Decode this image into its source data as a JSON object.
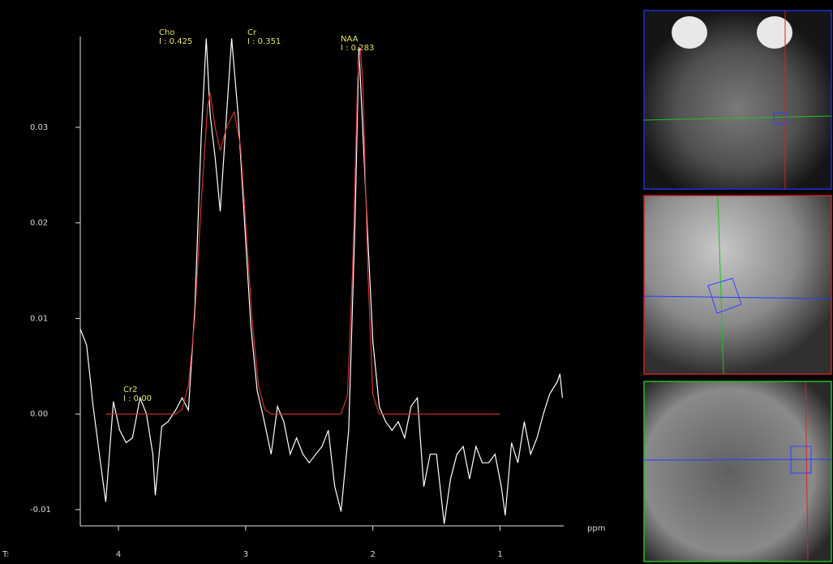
{
  "chart_data": {
    "type": "line",
    "x_label": "ppm",
    "corner_label": "T:",
    "xlim": [
      4.3,
      0.5
    ],
    "xticks": [
      4,
      3,
      2,
      1
    ],
    "ylim": [
      -0.0117,
      0.0395
    ],
    "yticks": [
      -0.01,
      {
        "value": 0,
        "label": "0.00"
      },
      0.01,
      0.02,
      0.03
    ],
    "annotations": [
      {
        "name": "Cho",
        "integral": "I : 0.425"
      },
      {
        "name": "Cr",
        "integral": "I : 0.351"
      },
      {
        "name": "NAA",
        "integral": "I : 0.283"
      },
      {
        "name": "Cr2",
        "integral": "I : 0.00"
      }
    ],
    "series": [
      {
        "color": "#ffffff",
        "x": [
          4.3,
          4.25,
          4.2,
          4.15,
          4.1,
          4.04,
          3.99,
          3.94,
          3.89,
          3.83,
          3.78,
          3.73,
          3.71,
          3.66,
          3.61,
          3.55,
          3.5,
          3.45,
          3.4,
          3.35,
          3.31,
          3.28,
          3.24,
          3.2,
          3.15,
          3.11,
          3.06,
          3.01,
          2.96,
          2.91,
          2.86,
          2.8,
          2.75,
          2.7,
          2.65,
          2.6,
          2.55,
          2.5,
          2.45,
          2.4,
          2.35,
          2.3,
          2.25,
          2.19,
          2.14,
          2.11,
          2.05,
          2.0,
          1.95,
          1.9,
          1.85,
          1.8,
          1.75,
          1.7,
          1.65,
          1.6,
          1.55,
          1.5,
          1.44,
          1.39,
          1.34,
          1.29,
          1.24,
          1.19,
          1.14,
          1.09,
          1.04,
          0.99,
          0.96,
          0.91,
          0.86,
          0.81,
          0.76,
          0.71,
          0.66,
          0.61,
          0.55,
          0.53,
          0.51
        ],
        "values": [
          0.0089,
          0.0072,
          0.0009,
          -0.0042,
          -0.0092,
          0.0013,
          -0.0017,
          -0.003,
          -0.0025,
          0.0017,
          0.0,
          -0.0042,
          -0.0085,
          -0.0013,
          -0.0008,
          0.0004,
          0.0017,
          0.0004,
          0.011,
          0.0289,
          0.0393,
          0.0314,
          0.0268,
          0.0212,
          0.0314,
          0.0393,
          0.0314,
          0.0204,
          0.0093,
          0.0025,
          -0.0004,
          -0.0042,
          0.0008,
          -0.0008,
          -0.0042,
          -0.0025,
          -0.0042,
          -0.0051,
          -0.0042,
          -0.0034,
          -0.0017,
          -0.0076,
          -0.0102,
          -0.0017,
          0.0204,
          0.0384,
          0.0212,
          0.0076,
          0.0008,
          -0.0008,
          -0.0017,
          -0.0008,
          -0.0025,
          0.0008,
          0.0017,
          -0.0076,
          -0.0042,
          -0.0042,
          -0.0115,
          -0.0068,
          -0.0042,
          -0.0034,
          -0.0068,
          -0.0034,
          -0.0051,
          -0.0051,
          -0.0042,
          -0.0076,
          -0.0106,
          -0.003,
          -0.0051,
          -0.0008,
          -0.0042,
          -0.0025,
          0.0,
          0.0021,
          0.0034,
          0.0042,
          0.0017
        ]
      },
      {
        "color": "#d03030",
        "x": [
          4.1,
          3.55,
          3.5,
          3.45,
          3.4,
          3.35,
          3.3,
          3.28,
          3.24,
          3.2,
          3.15,
          3.09,
          3.04,
          3.0,
          2.95,
          2.9,
          2.85,
          2.8,
          2.25,
          2.2,
          2.16,
          2.12,
          2.1,
          2.08,
          2.04,
          2.0,
          1.95,
          1.0
        ],
        "values": [
          0,
          0,
          0.0005,
          0.003,
          0.01,
          0.022,
          0.032,
          0.0336,
          0.03,
          0.0276,
          0.03,
          0.0316,
          0.028,
          0.02,
          0.01,
          0.003,
          0.0005,
          0,
          0,
          0.002,
          0.015,
          0.035,
          0.0383,
          0.035,
          0.015,
          0.002,
          0,
          0
        ]
      }
    ]
  }
}
